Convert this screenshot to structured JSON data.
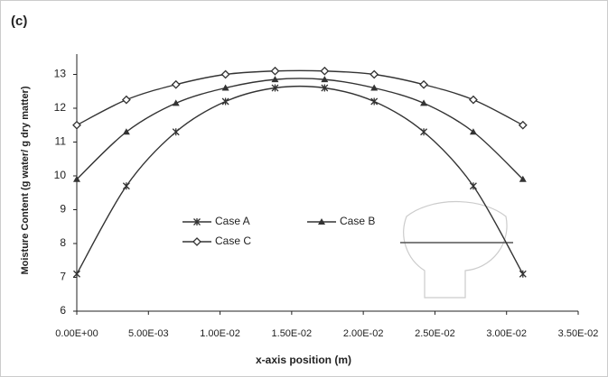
{
  "chart_data": {
    "type": "line",
    "panel_label": "(c)",
    "x_label": "x-axis position (m)",
    "y_label": "Moisture Content (g water/ g dry matter)",
    "x": [
      0,
      0.00346,
      0.00692,
      0.01038,
      0.01384,
      0.0173,
      0.02076,
      0.02422,
      0.02768,
      0.03114
    ],
    "series": [
      {
        "name": "Case A",
        "marker": "x",
        "color": "#333333",
        "values": [
          7.1,
          9.7,
          11.3,
          12.2,
          12.6,
          12.6,
          12.2,
          11.3,
          9.7,
          7.1
        ]
      },
      {
        "name": "Case B",
        "marker": "triangle",
        "color": "#333333",
        "values": [
          9.9,
          11.3,
          12.15,
          12.6,
          12.85,
          12.85,
          12.6,
          12.15,
          11.3,
          9.9
        ]
      },
      {
        "name": "Case C",
        "marker": "diamond",
        "color": "#333333",
        "values": [
          11.5,
          12.25,
          12.7,
          13.0,
          13.1,
          13.1,
          13.0,
          12.7,
          12.25,
          11.5
        ]
      }
    ],
    "xlim": [
      0,
      0.035
    ],
    "xticks": [
      {
        "value": 0,
        "label": "0.00E+00"
      },
      {
        "value": 0.005,
        "label": "5.00E-03"
      },
      {
        "value": 0.01,
        "label": "1.00E-02"
      },
      {
        "value": 0.015,
        "label": "1.50E-02"
      },
      {
        "value": 0.02,
        "label": "2.00E-02"
      },
      {
        "value": 0.025,
        "label": "2.50E-02"
      },
      {
        "value": 0.03,
        "label": "3.00E-02"
      },
      {
        "value": 0.035,
        "label": "3.50E-02"
      }
    ],
    "ylim": [
      6,
      13.6
    ],
    "yticks": [
      6,
      7,
      8,
      9,
      10,
      11,
      12,
      13
    ],
    "grid": false
  }
}
